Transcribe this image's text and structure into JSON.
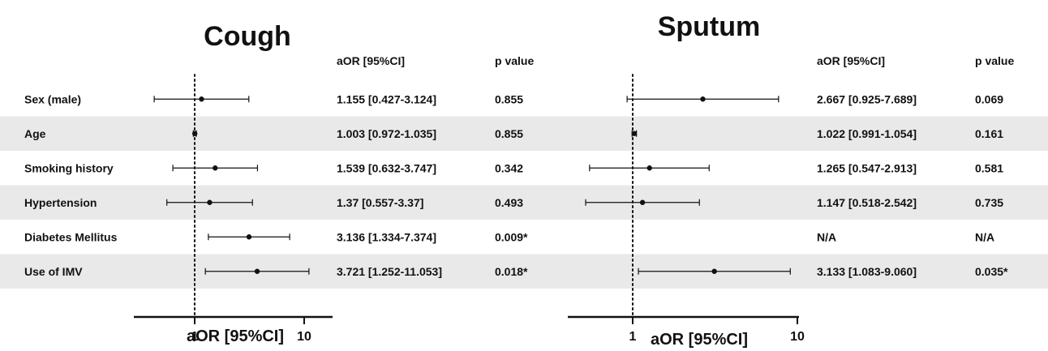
{
  "colors": {
    "row_band": "#e9e9e9",
    "ink": "#111111"
  },
  "row_labels": [
    "Sex (male)",
    "Age",
    "Smoking history",
    "Hypertension",
    "Diabetes Mellitus",
    "Use of IMV"
  ],
  "col_headers": {
    "aor": "aOR [95%CI]",
    "p": "p value"
  },
  "chart_data": [
    {
      "type": "forest",
      "title": "Cough",
      "xlabel": "aOR [95%CI]",
      "x_scale": "log",
      "x_ticks": [
        1,
        10
      ],
      "reference_line": 1,
      "categories": [
        "Sex (male)",
        "Age",
        "Smoking history",
        "Hypertension",
        "Diabetes Mellitus",
        "Use of IMV"
      ],
      "rows": [
        {
          "label": "Sex (male)",
          "or": 1.155,
          "lo": 0.427,
          "hi": 3.124,
          "text": "1.155 [0.427-3.124]",
          "p": "0.855"
        },
        {
          "label": "Age",
          "or": 1.003,
          "lo": 0.972,
          "hi": 1.035,
          "text": "1.003 [0.972-1.035]",
          "p": "0.855"
        },
        {
          "label": "Smoking history",
          "or": 1.539,
          "lo": 0.632,
          "hi": 3.747,
          "text": "1.539 [0.632-3.747]",
          "p": "0.342"
        },
        {
          "label": "Hypertension",
          "or": 1.37,
          "lo": 0.557,
          "hi": 3.37,
          "text": "1.37 [0.557-3.37]",
          "p": "0.493"
        },
        {
          "label": "Diabetes Mellitus",
          "or": 3.136,
          "lo": 1.334,
          "hi": 7.374,
          "text": "3.136 [1.334-7.374]",
          "p": "0.009*"
        },
        {
          "label": "Use of IMV",
          "or": 3.721,
          "lo": 1.252,
          "hi": 11.053,
          "text": "3.721 [1.252-11.053]",
          "p": "0.018*"
        }
      ]
    },
    {
      "type": "forest",
      "title": "Sputum",
      "xlabel": "aOR [95%CI]",
      "x_scale": "log",
      "x_ticks": [
        1,
        10
      ],
      "reference_line": 1,
      "categories": [
        "Sex (male)",
        "Age",
        "Smoking history",
        "Hypertension",
        "Diabetes Mellitus",
        "Use of IMV"
      ],
      "rows": [
        {
          "label": "Sex (male)",
          "or": 2.667,
          "lo": 0.925,
          "hi": 7.689,
          "text": "2.667 [0.925-7.689]",
          "p": "0.069"
        },
        {
          "label": "Age",
          "or": 1.022,
          "lo": 0.991,
          "hi": 1.054,
          "text": "1.022 [0.991-1.054]",
          "p": "0.161"
        },
        {
          "label": "Smoking history",
          "or": 1.265,
          "lo": 0.547,
          "hi": 2.913,
          "text": "1.265 [0.547-2.913]",
          "p": "0.581"
        },
        {
          "label": "Hypertension",
          "or": 1.147,
          "lo": 0.518,
          "hi": 2.542,
          "text": "1.147 [0.518-2.542]",
          "p": "0.735"
        },
        {
          "label": "Diabetes Mellitus",
          "or": null,
          "lo": null,
          "hi": null,
          "text": "N/A",
          "p": "N/A"
        },
        {
          "label": "Use of IMV",
          "or": 3.133,
          "lo": 1.083,
          "hi": 9.06,
          "text": "3.133 [1.083-9.060]",
          "p": "0.035*"
        }
      ]
    }
  ]
}
